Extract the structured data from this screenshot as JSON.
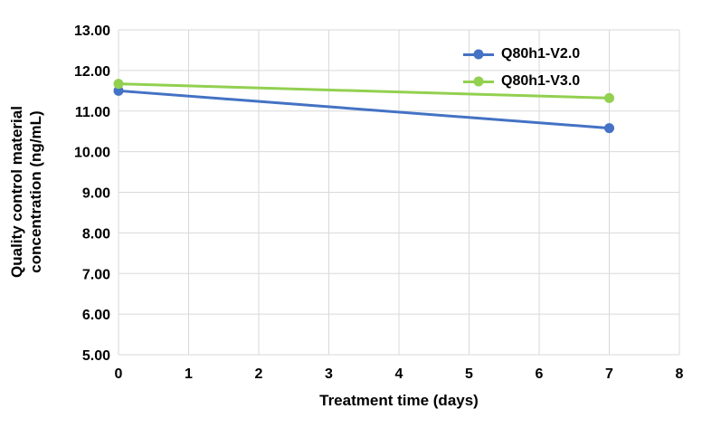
{
  "chart_data": {
    "type": "line",
    "title": "",
    "xlabel": "Treatment time (days)",
    "ylabel": "Quality control material concentration (ng/mL)",
    "ylabel_lines": [
      "Quality control material",
      "concentration (ng/mL)"
    ],
    "xlim": [
      0,
      8
    ],
    "ylim": [
      5,
      13
    ],
    "x_ticks": [
      "0",
      "1",
      "2",
      "3",
      "4",
      "5",
      "6",
      "7",
      "8"
    ],
    "y_ticks": [
      "5.00",
      "6.00",
      "7.00",
      "8.00",
      "9.00",
      "10.00",
      "11.00",
      "12.00",
      "13.00"
    ],
    "grid": true,
    "gridline_color": "#D9D9D9",
    "background_color": "#FFFFFF",
    "text_color": "#000000",
    "legend_position": "top-right-inside",
    "series": [
      {
        "name": "Q80h1-V2.0",
        "color": "#4472C4",
        "x": [
          0,
          7
        ],
        "y": [
          11.5,
          10.58
        ]
      },
      {
        "name": "Q80h1-V3.0",
        "color": "#92D050",
        "x": [
          0,
          7
        ],
        "y": [
          11.67,
          11.32
        ]
      }
    ]
  }
}
